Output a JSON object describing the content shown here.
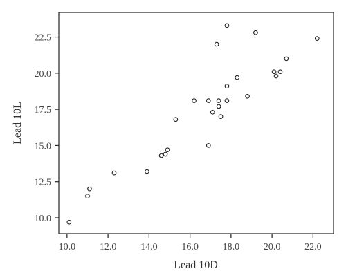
{
  "chart_data": {
    "type": "scatter",
    "xlabel": "Lead 10D",
    "ylabel": "Lead 10L",
    "xlim": [
      9.6,
      23.0
    ],
    "ylim": [
      8.9,
      24.2
    ],
    "x_ticks": [
      10.0,
      12.0,
      14.0,
      16.0,
      18.0,
      20.0,
      22.0
    ],
    "x_tick_labels": [
      "10.0",
      "12.0",
      "14.0",
      "16.0",
      "18.0",
      "20.0",
      "22.0"
    ],
    "y_ticks": [
      10.0,
      12.5,
      15.0,
      17.5,
      20.0,
      22.5
    ],
    "y_tick_labels": [
      "10.0",
      "12.5",
      "15.0",
      "17.5",
      "20.0",
      "22.5"
    ],
    "grid": false,
    "marker": "open-circle",
    "points": [
      {
        "x": 10.1,
        "y": 9.7
      },
      {
        "x": 11.0,
        "y": 11.5
      },
      {
        "x": 11.1,
        "y": 12.0
      },
      {
        "x": 12.3,
        "y": 13.1
      },
      {
        "x": 13.9,
        "y": 13.2
      },
      {
        "x": 14.6,
        "y": 14.3
      },
      {
        "x": 14.8,
        "y": 14.4
      },
      {
        "x": 14.9,
        "y": 14.7
      },
      {
        "x": 15.3,
        "y": 16.8
      },
      {
        "x": 16.2,
        "y": 18.1
      },
      {
        "x": 16.9,
        "y": 18.1
      },
      {
        "x": 16.9,
        "y": 15.0
      },
      {
        "x": 17.1,
        "y": 17.3
      },
      {
        "x": 17.3,
        "y": 22.0
      },
      {
        "x": 17.4,
        "y": 18.1
      },
      {
        "x": 17.4,
        "y": 17.7
      },
      {
        "x": 17.5,
        "y": 17.0
      },
      {
        "x": 17.8,
        "y": 23.3
      },
      {
        "x": 17.8,
        "y": 19.1
      },
      {
        "x": 17.8,
        "y": 18.1
      },
      {
        "x": 18.3,
        "y": 19.7
      },
      {
        "x": 18.8,
        "y": 18.4
      },
      {
        "x": 19.2,
        "y": 22.8
      },
      {
        "x": 20.1,
        "y": 20.1
      },
      {
        "x": 20.2,
        "y": 19.8
      },
      {
        "x": 20.4,
        "y": 20.1
      },
      {
        "x": 20.7,
        "y": 21.0
      },
      {
        "x": 22.2,
        "y": 22.4
      }
    ]
  }
}
